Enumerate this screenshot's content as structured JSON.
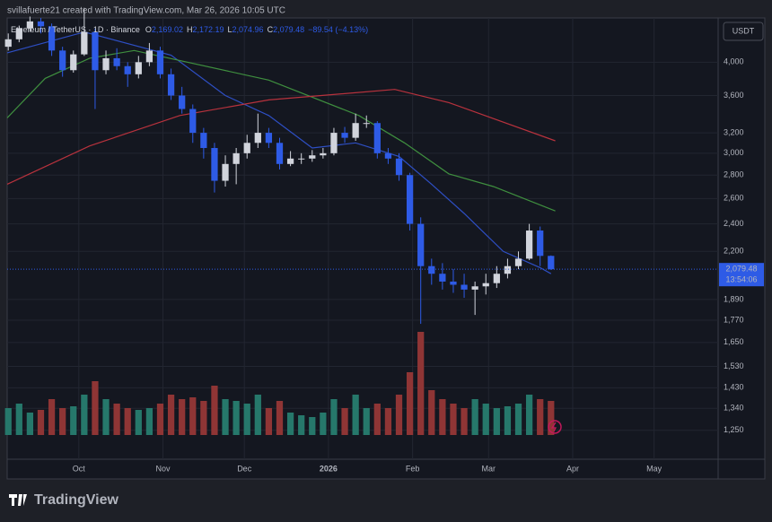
{
  "attribution": "svillafuerte21 created with TradingView.com, Mar 26, 2026 10:05 UTC",
  "brand": "TradingView",
  "chart_data": {
    "type": "candlestick",
    "symbol": "Ethereum / TetherUS · 1D · Binance",
    "ohlc_header": [
      {
        "key": "O",
        "value": "2,169.02"
      },
      {
        "key": "H",
        "value": "2,172.19"
      },
      {
        "key": "L",
        "value": "2,074.96"
      },
      {
        "key": "C",
        "value": "2,079.48"
      }
    ],
    "change": "−89.54 (−4.13%)",
    "currency": "USDT",
    "last_close_label": "2,079.48",
    "countdown": "13:54:06",
    "log_scale": true,
    "grid": true,
    "up_color": "#d1d4dc",
    "down_color": "#2e5be6",
    "volume_up_color": "#26786b",
    "volume_down_color": "#8f3535",
    "ohlc": {
      "open": [
        4200,
        4300,
        4450,
        4550,
        4480,
        4150,
        3900,
        4100,
        4400,
        3900,
        4050,
        3950,
        3850,
        4000,
        4150,
        3850,
        3600,
        3450,
        3200,
        3050,
        2750,
        2900,
        3000,
        3100,
        3200,
        3100,
        2900,
        2950,
        2950,
        2980,
        3000,
        3200,
        3150,
        3300,
        3300,
        3000,
        2950,
        2800,
        2400,
        2100,
        2050,
        2000,
        1980,
        1950,
        1970,
        1990,
        2050,
        2100,
        2150,
        2350,
        2169.02
      ],
      "high": [
        4380,
        4490,
        4620,
        4600,
        4520,
        4200,
        4150,
        4750,
        4450,
        4150,
        4180,
        4000,
        4080,
        4250,
        4200,
        3920,
        3700,
        3500,
        3250,
        3100,
        2980,
        3050,
        3180,
        3400,
        3250,
        3150,
        3020,
        3000,
        3030,
        3050,
        3250,
        3260,
        3400,
        3380,
        3320,
        3050,
        3000,
        2820,
        2450,
        2150,
        2120,
        2080,
        2050,
        2000,
        2050,
        2100,
        2150,
        2200,
        2400,
        2380,
        2172.19
      ],
      "low": [
        4150,
        4260,
        4400,
        4380,
        4080,
        3820,
        3870,
        4080,
        3450,
        3850,
        3900,
        3700,
        3800,
        3950,
        3800,
        3550,
        3400,
        3100,
        2950,
        2650,
        2700,
        2720,
        2950,
        3050,
        3050,
        2850,
        2880,
        2900,
        2920,
        2950,
        2980,
        3100,
        3120,
        3250,
        2950,
        2900,
        2750,
        2350,
        1750,
        1980,
        1950,
        1930,
        1900,
        1800,
        1920,
        1960,
        2020,
        2080,
        2140,
        2100,
        2074.96
      ],
      "close": [
        4300,
        4450,
        4550,
        4480,
        4150,
        3900,
        4100,
        4400,
        3900,
        4050,
        3950,
        3850,
        4000,
        4150,
        3850,
        3600,
        3450,
        3200,
        3050,
        2750,
        2900,
        3000,
        3100,
        3200,
        3100,
        2900,
        2950,
        2950,
        2980,
        3000,
        3200,
        3150,
        3300,
        3300,
        3000,
        2950,
        2800,
        2400,
        2100,
        2050,
        2000,
        1980,
        1950,
        1970,
        1990,
        2050,
        2100,
        2150,
        2350,
        2169.02,
        2079.48
      ]
    },
    "volume": [
      30,
      35,
      25,
      28,
      40,
      30,
      32,
      45,
      60,
      40,
      35,
      30,
      28,
      30,
      35,
      45,
      40,
      42,
      38,
      55,
      40,
      38,
      35,
      45,
      30,
      38,
      25,
      22,
      20,
      25,
      40,
      30,
      45,
      30,
      35,
      30,
      45,
      70,
      115,
      50,
      40,
      35,
      30,
      40,
      35,
      30,
      32,
      35,
      45,
      40,
      38
    ],
    "moving_averages": [
      {
        "color": "#2e4fc4",
        "x": [
          -0.1,
          7,
          15,
          20,
          24,
          28,
          32,
          36,
          39,
          42,
          45.6,
          49,
          50
        ],
        "values": [
          4120,
          4400,
          4090,
          3600,
          3380,
          3050,
          3100,
          2970,
          2720,
          2480,
          2200,
          2090,
          2050
        ]
      },
      {
        "color": "#3f8f3f",
        "x": [
          -0.1,
          3.4,
          7.5,
          11.6,
          24,
          32.3,
          36.5,
          40.6,
          44.7,
          50.4
        ],
        "values": [
          3355,
          3800,
          4050,
          4150,
          3780,
          3380,
          3100,
          2810,
          2700,
          2500
        ]
      },
      {
        "color": "#b8323d",
        "x": [
          -0.1,
          7.5,
          15.8,
          24,
          35.6,
          40.6,
          50.4
        ],
        "values": [
          2720,
          3070,
          3380,
          3550,
          3670,
          3520,
          3120
        ]
      }
    ],
    "xlim": [
      -0.1,
      65.4
    ],
    "xticks": [
      {
        "value": 6.5,
        "label": "Oct"
      },
      {
        "value": 14.25,
        "label": "Nov"
      },
      {
        "value": 21.75,
        "label": "Dec"
      },
      {
        "value": 29.5,
        "label": "2026"
      },
      {
        "value": 37.25,
        "label": "Feb"
      },
      {
        "value": 44.25,
        "label": "Mar"
      },
      {
        "value": 52,
        "label": "Apr"
      },
      {
        "value": 59.5,
        "label": "May"
      }
    ],
    "ylim": [
      1141,
      4600
    ],
    "yticks": [
      {
        "value": 4000,
        "label": "4,000"
      },
      {
        "value": 3600,
        "label": "3,600"
      },
      {
        "value": 3200,
        "label": "3,200"
      },
      {
        "value": 3000,
        "label": "3,000"
      },
      {
        "value": 2800,
        "label": "2,800"
      },
      {
        "value": 2600,
        "label": "2,600"
      },
      {
        "value": 2400,
        "label": "2,400"
      },
      {
        "value": 2200,
        "label": "2,200"
      },
      {
        "value": 1890,
        "label": "1,890"
      },
      {
        "value": 1770,
        "label": "1,770"
      },
      {
        "value": 1650,
        "label": "1,650"
      },
      {
        "value": 1530,
        "label": "1,530"
      },
      {
        "value": 1430,
        "label": "1,430"
      },
      {
        "value": 1340,
        "label": "1,340"
      },
      {
        "value": 1250,
        "label": "1,250"
      }
    ]
  }
}
